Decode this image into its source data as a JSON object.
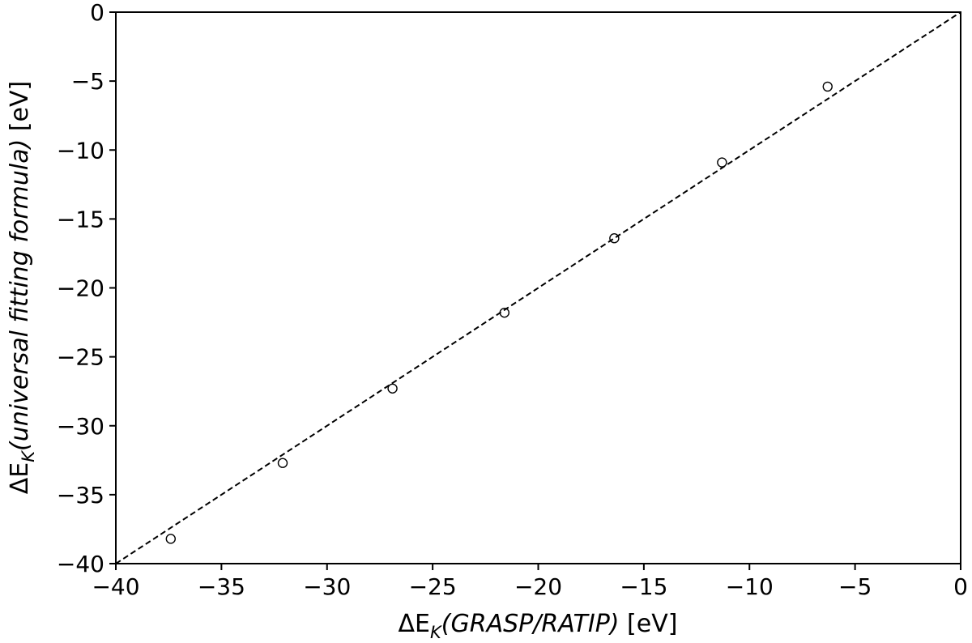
{
  "chart_data": {
    "type": "scatter",
    "xlabel": {
      "prefix": "ΔE",
      "subscript": "K",
      "italic": "(GRASP/RATIP)",
      "unit": " [eV]"
    },
    "ylabel": {
      "prefix": "ΔE",
      "subscript": "K",
      "italic": "(universal fitting formula)",
      "unit": " [eV]"
    },
    "xlim": [
      -40,
      0
    ],
    "ylim": [
      -40,
      0
    ],
    "xticks": [
      -40,
      -35,
      -30,
      -25,
      -20,
      -15,
      -10,
      -5,
      0
    ],
    "yticks": [
      -40,
      -35,
      -30,
      -25,
      -20,
      -15,
      -10,
      -5,
      0
    ],
    "xtick_labels": [
      "−40",
      "−35",
      "−30",
      "−25",
      "−20",
      "−15",
      "−10",
      "−5",
      "0"
    ],
    "ytick_labels": [
      "−40",
      "−35",
      "−30",
      "−25",
      "−20",
      "−15",
      "−10",
      "−5",
      "0"
    ],
    "grid": false,
    "series": [
      {
        "marker": "open-circle",
        "color": "#000000",
        "points": [
          {
            "x": -37.4,
            "y": -38.2
          },
          {
            "x": -32.1,
            "y": -32.7
          },
          {
            "x": -26.9,
            "y": -27.3
          },
          {
            "x": -21.6,
            "y": -21.8
          },
          {
            "x": -16.4,
            "y": -16.4
          },
          {
            "x": -11.3,
            "y": -10.9
          },
          {
            "x": -6.3,
            "y": -5.4
          }
        ]
      }
    ],
    "reference_line": {
      "style": "dashed",
      "color": "#000000",
      "from": {
        "x": -40,
        "y": -40
      },
      "to": {
        "x": 0,
        "y": 0
      }
    }
  }
}
